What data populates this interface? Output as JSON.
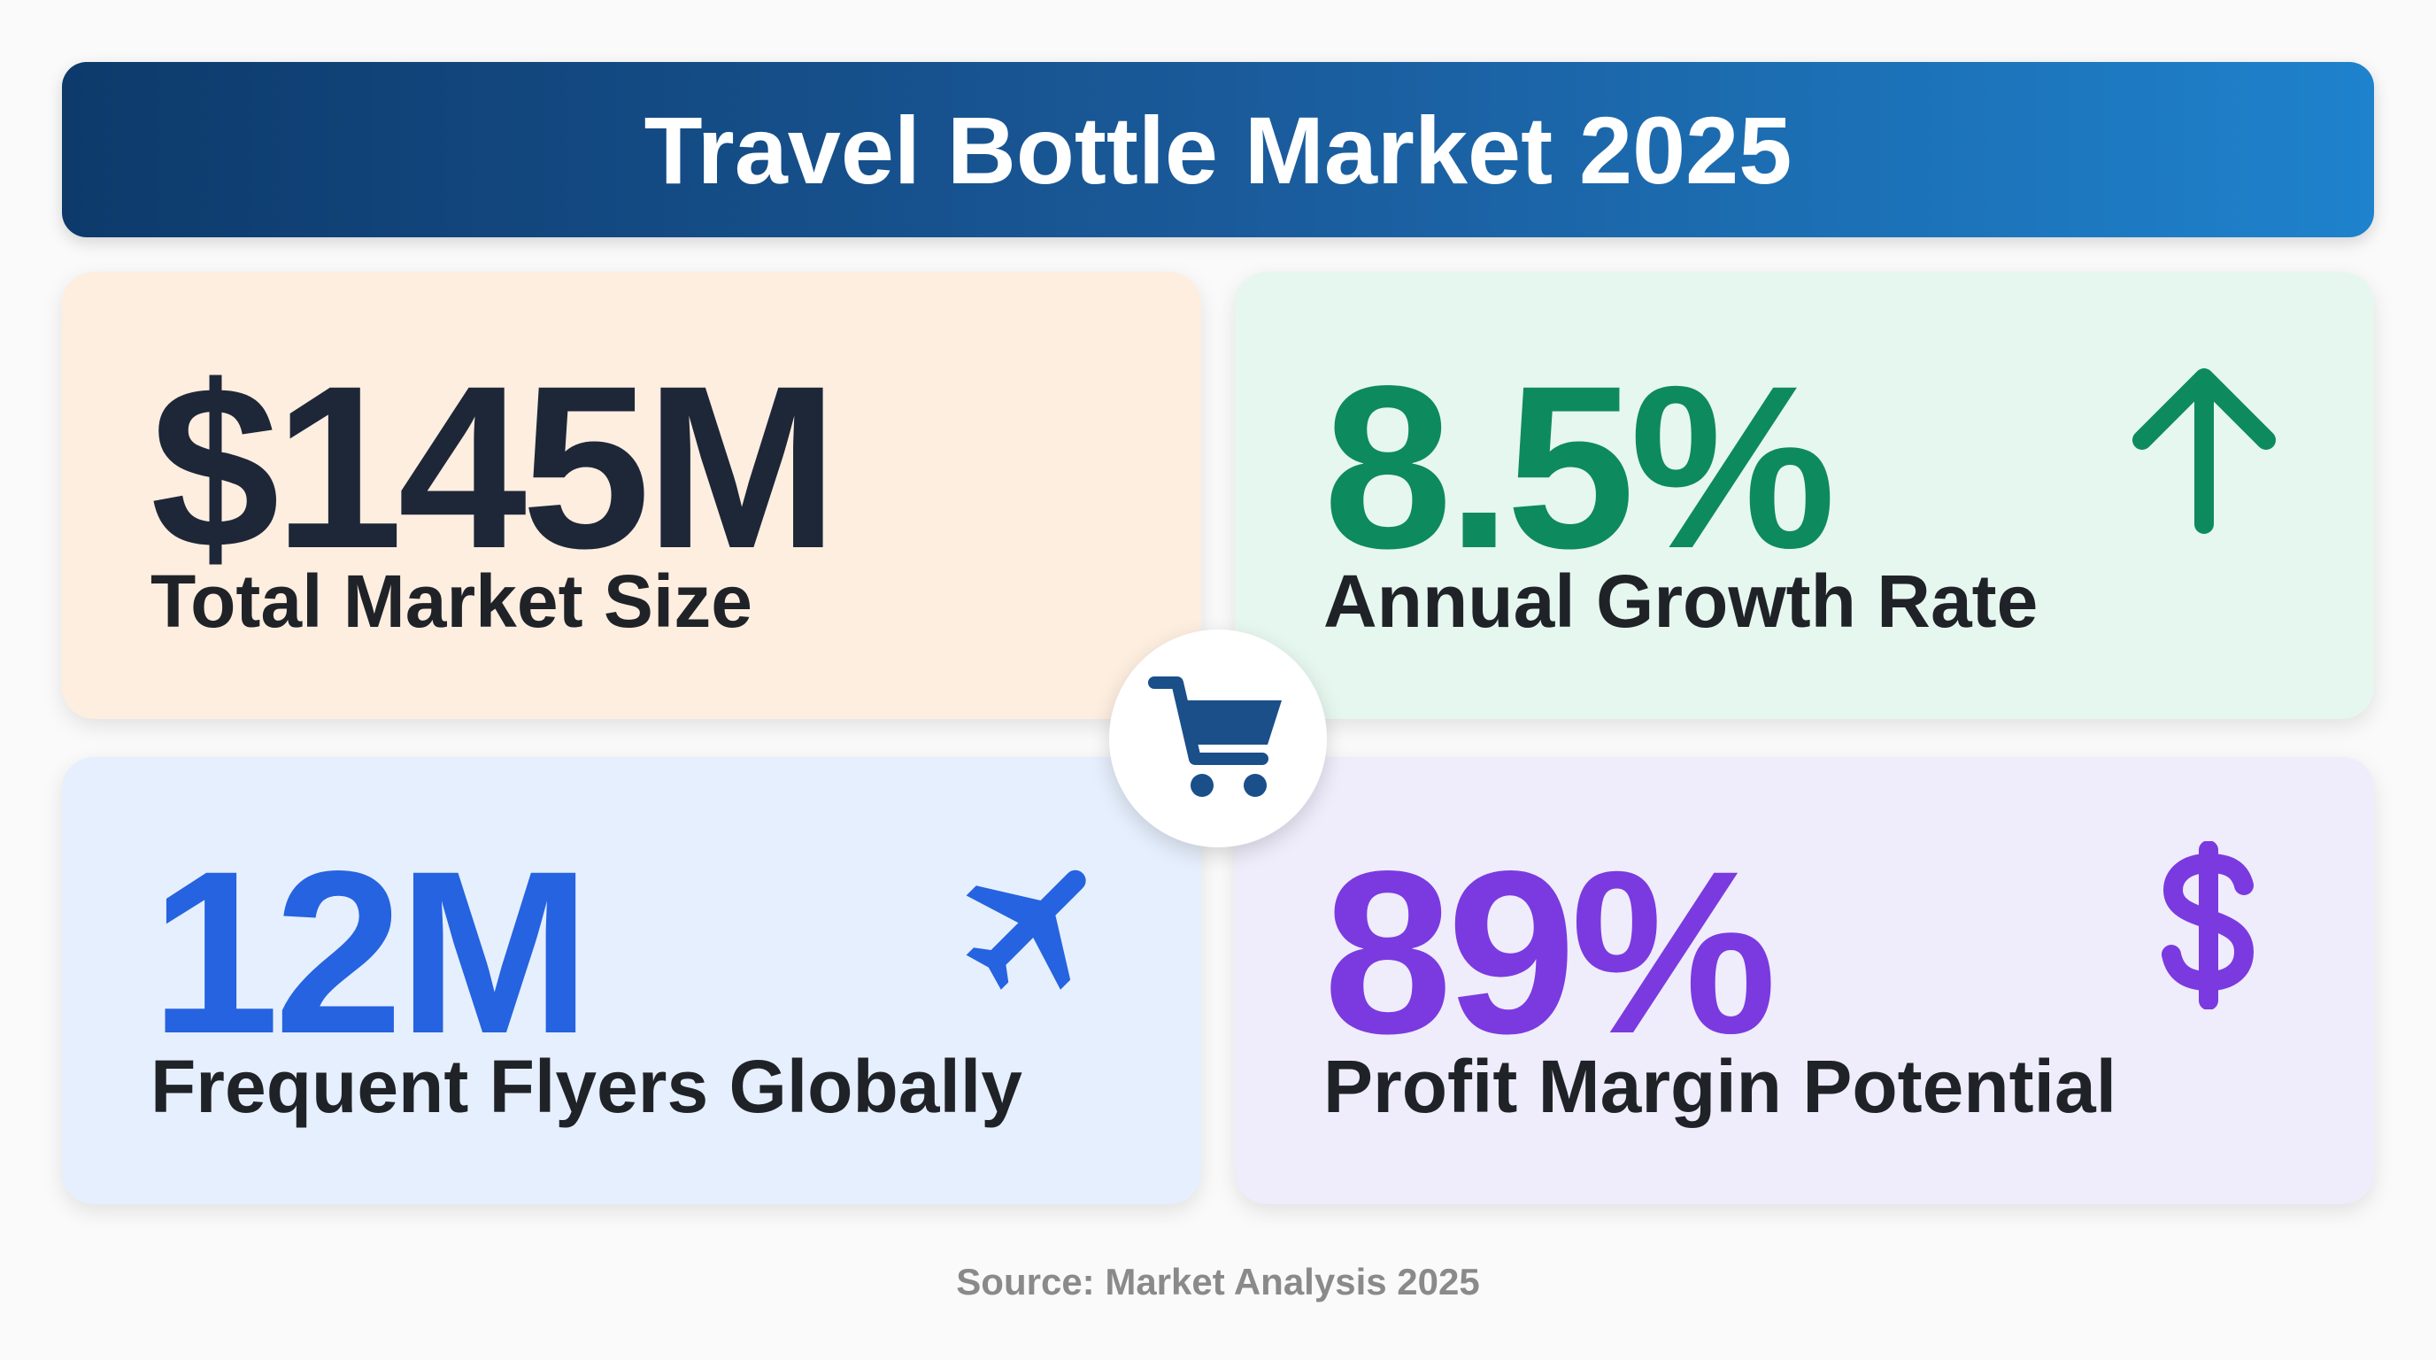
{
  "header": {
    "title": "Travel Bottle Market 2025"
  },
  "cards": [
    {
      "value": "$145M",
      "label": "Total Market Size"
    },
    {
      "value": "8.5%",
      "label": "Annual Growth Rate"
    },
    {
      "value": "12M",
      "label": "Frequent Flyers Globally"
    },
    {
      "value": "89%",
      "label": "Profit Margin Potential"
    }
  ],
  "footer": {
    "source": "Source: Market Analysis 2025"
  }
}
